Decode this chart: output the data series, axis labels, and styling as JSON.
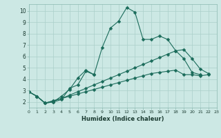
{
  "xlabel": "Humidex (Indice chaleur)",
  "background_color": "#cce8e4",
  "grid_color": "#aacfca",
  "line_color": "#1a6b5a",
  "xlim": [
    0,
    23
  ],
  "ylim": [
    1.5,
    10.6
  ],
  "xticks": [
    0,
    1,
    2,
    3,
    4,
    5,
    6,
    7,
    8,
    9,
    10,
    11,
    12,
    13,
    14,
    15,
    16,
    17,
    18,
    19,
    20,
    21,
    22,
    23
  ],
  "yticks": [
    2,
    3,
    4,
    5,
    6,
    7,
    8,
    9,
    10
  ],
  "series": [
    {
      "x": [
        0,
        1,
        2,
        3,
        4,
        5,
        6,
        7,
        8,
        9,
        10,
        11,
        12,
        13,
        14,
        15,
        16,
        17,
        18,
        19,
        20,
        21,
        22
      ],
      "y": [
        2.9,
        2.5,
        1.9,
        2.0,
        2.2,
        3.2,
        3.5,
        4.7,
        4.4,
        6.8,
        8.5,
        9.1,
        10.3,
        9.9,
        7.5,
        7.5,
        7.8,
        7.5,
        6.5,
        6.6,
        5.8,
        4.9,
        4.5
      ]
    },
    {
      "x": [
        0,
        1,
        2,
        3,
        4,
        5,
        6,
        7,
        8
      ],
      "y": [
        2.9,
        2.5,
        1.9,
        2.0,
        2.5,
        3.1,
        4.1,
        4.8,
        4.4
      ]
    },
    {
      "x": [
        0,
        1,
        2,
        3,
        4,
        5,
        6,
        7,
        8,
        9,
        10,
        11,
        12,
        13,
        14,
        15,
        16,
        17,
        18,
        19,
        20,
        21
      ],
      "y": [
        2.9,
        2.5,
        1.9,
        2.1,
        2.3,
        2.6,
        2.9,
        3.2,
        3.5,
        3.8,
        4.1,
        4.4,
        4.7,
        5.0,
        5.3,
        5.6,
        5.9,
        6.2,
        6.5,
        5.8,
        4.6,
        4.4
      ]
    },
    {
      "x": [
        0,
        1,
        2,
        3,
        4,
        5,
        6,
        7,
        8,
        9,
        10,
        11,
        12,
        13,
        14,
        15,
        16,
        17,
        18,
        19,
        20,
        21,
        22
      ],
      "y": [
        2.9,
        2.5,
        1.9,
        2.1,
        2.3,
        2.5,
        2.7,
        2.9,
        3.1,
        3.3,
        3.5,
        3.7,
        3.9,
        4.1,
        4.3,
        4.5,
        4.6,
        4.7,
        4.8,
        4.4,
        4.4,
        4.3,
        4.4
      ]
    }
  ],
  "marker_size": 2.5
}
